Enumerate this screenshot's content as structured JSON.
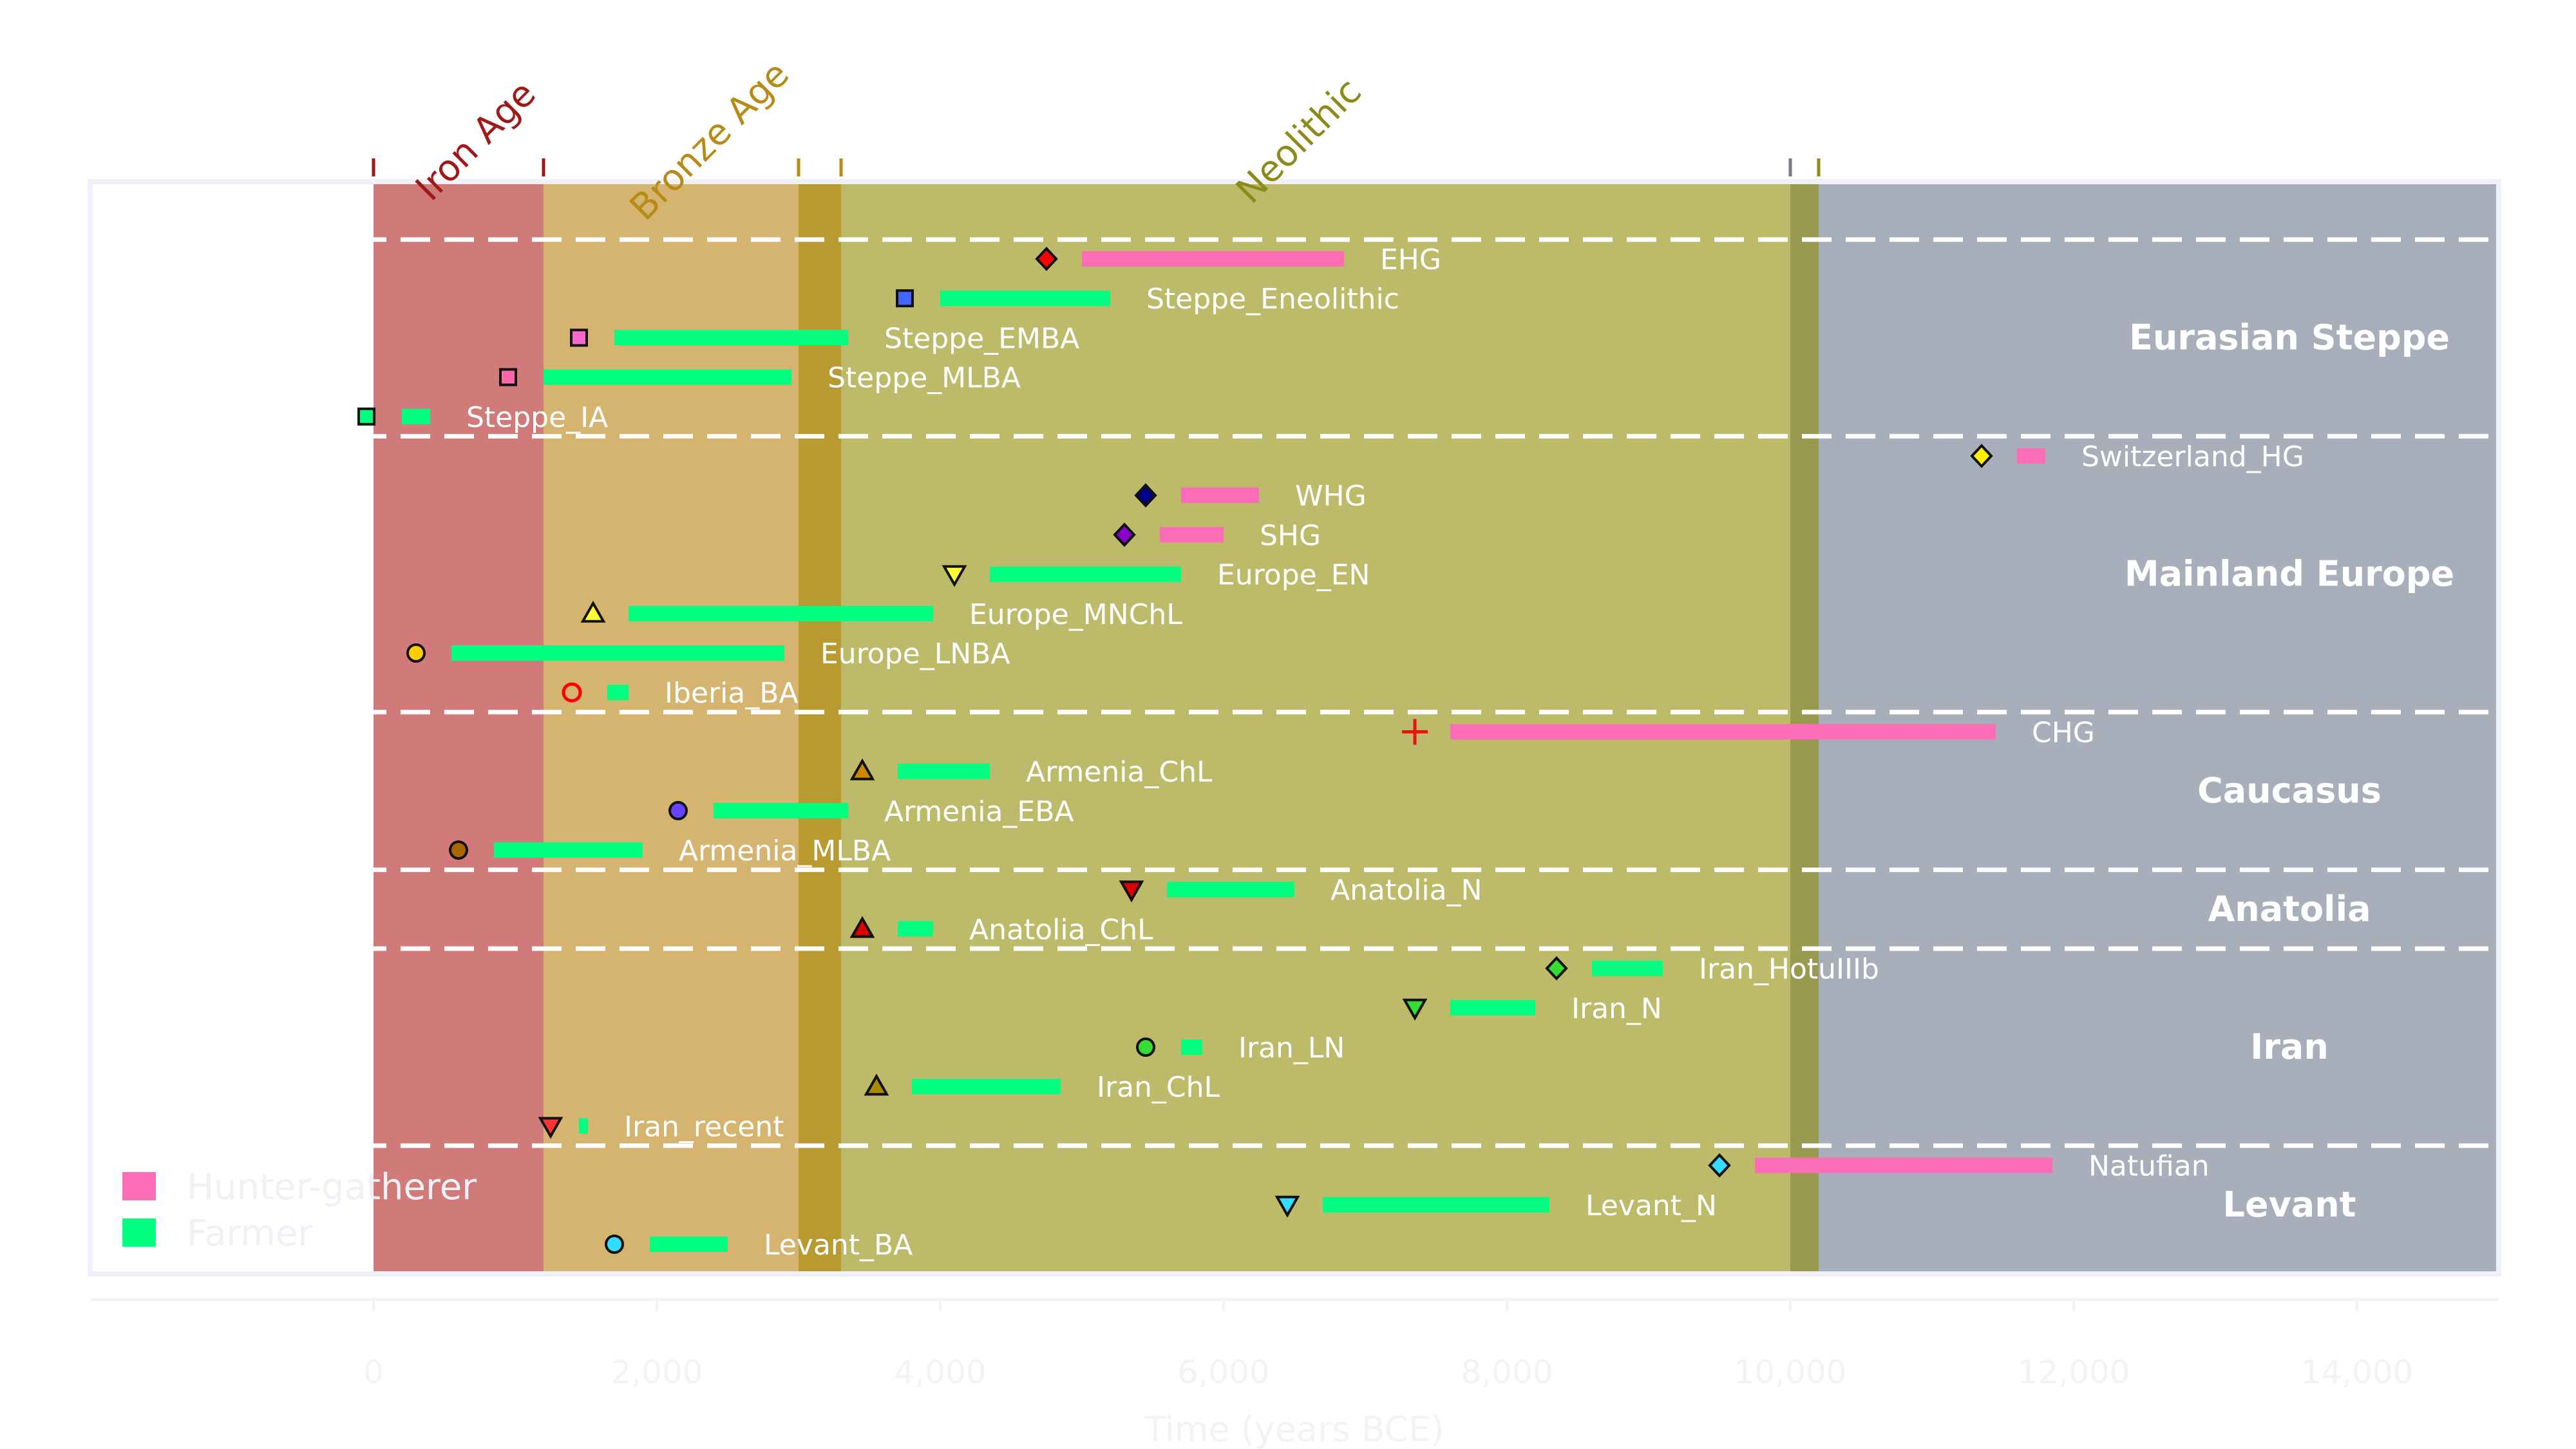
{
  "chart_data": {
    "type": "timeline",
    "xlabel": "Time (years BCE)",
    "xlim": [
      -2000,
      15000
    ],
    "x_ticks": [
      0,
      2000,
      4000,
      6000,
      8000,
      10000,
      12000,
      14000
    ],
    "x_tick_labels": [
      "0",
      "2,000",
      "4,000",
      "6,000",
      "8,000",
      "10,000",
      "12,000",
      "14,000"
    ],
    "eras": [
      {
        "name": "Iron Age",
        "start": 0,
        "end": 1200,
        "color": "#d07a7a",
        "label_color": "#a01919"
      },
      {
        "name": "Bronze Age",
        "start": 1200,
        "end": 3300,
        "color": "#d4b46e",
        "label_color": "#b88a16",
        "overlap_end": 3000,
        "overlap_color": "#b89a30"
      },
      {
        "name": "Neolithic",
        "start": 3000,
        "end": 10200,
        "color": "#bdbb69",
        "label_color": "#8d8b18",
        "overlap_start": 10000,
        "overlap_color": "#999a4f"
      },
      {
        "name": "",
        "start": 10000,
        "end": 15000,
        "color": "#a8aeba"
      }
    ],
    "legend": {
      "placement": "bottom-left",
      "items": [
        {
          "label": "Hunter-gatherer",
          "color": "#fb6db6"
        },
        {
          "label": "Farmer",
          "color": "#00ff80"
        }
      ]
    },
    "regions": [
      {
        "name": "Eurasian Steppe",
        "rows": [
          0,
          4
        ]
      },
      {
        "name": "Mainland Europe",
        "rows": [
          5,
          11
        ]
      },
      {
        "name": "Caucasus",
        "rows": [
          12,
          15
        ]
      },
      {
        "name": "Anatolia",
        "rows": [
          16,
          17
        ]
      },
      {
        "name": "Iran",
        "rows": [
          18,
          22
        ]
      },
      {
        "name": "Levant",
        "rows": [
          23,
          25
        ]
      }
    ],
    "populations": [
      {
        "label": "EHG",
        "type": "Hunter-gatherer",
        "start": 5000,
        "end": 6850,
        "marker": "diamond",
        "marker_color": "#ff0000",
        "marker_x": 4750
      },
      {
        "label": "Steppe_Eneolithic",
        "type": "Farmer",
        "start": 4000,
        "end": 5200,
        "marker": "square",
        "marker_color": "#4466ff",
        "marker_x": 3750
      },
      {
        "label": "Steppe_EMBA",
        "type": "Farmer",
        "start": 1700,
        "end": 3350,
        "marker": "square",
        "marker_color": "#ff66cc",
        "marker_x": 1450
      },
      {
        "label": "Steppe_MLBA",
        "type": "Farmer",
        "start": 1200,
        "end": 2950,
        "marker": "square",
        "marker_color": "#ff66aa",
        "marker_x": 950
      },
      {
        "label": "Steppe_IA",
        "type": "Farmer",
        "start": 200,
        "end": 400,
        "marker": "square",
        "marker_color": "#00ff80",
        "marker_x": -50
      },
      {
        "label": "Switzerland_HG",
        "type": "Hunter-gatherer",
        "start": 11600,
        "end": 11800,
        "marker": "diamond",
        "marker_color": "#ffee00",
        "marker_x": 11350
      },
      {
        "label": "WHG",
        "type": "Hunter-gatherer",
        "start": 5700,
        "end": 6250,
        "marker": "diamond",
        "marker_color": "#000088",
        "marker_x": 5450
      },
      {
        "label": "SHG",
        "type": "Hunter-gatherer",
        "start": 5550,
        "end": 6000,
        "marker": "diamond",
        "marker_color": "#8800cc",
        "marker_x": 5300
      },
      {
        "label": "Europe_EN",
        "type": "Farmer",
        "start": 4350,
        "end": 5700,
        "marker": "triangle-down",
        "marker_color": "#ffff33",
        "marker_x": 4100
      },
      {
        "label": "Europe_MNChL",
        "type": "Farmer",
        "start": 1800,
        "end": 3950,
        "marker": "triangle-up",
        "marker_color": "#ffff33",
        "marker_x": 1550
      },
      {
        "label": "Europe_LNBA",
        "type": "Farmer",
        "start": 550,
        "end": 2900,
        "marker": "circle",
        "marker_color": "#ffcc00",
        "marker_x": 300
      },
      {
        "label": "Iberia_BA",
        "type": "Farmer",
        "start": 1650,
        "end": 1800,
        "marker": "circle-open",
        "marker_color": "#ff0000",
        "marker_x": 1400
      },
      {
        "label": "CHG",
        "type": "Hunter-gatherer",
        "start": 7600,
        "end": 11450,
        "marker": "plus",
        "marker_color": "#ee1111",
        "marker_x": 7350
      },
      {
        "label": "Armenia_ChL",
        "type": "Farmer",
        "start": 3700,
        "end": 4350,
        "marker": "triangle-up",
        "marker_color": "#cc8800",
        "marker_x": 3450
      },
      {
        "label": "Armenia_EBA",
        "type": "Farmer",
        "start": 2400,
        "end": 3350,
        "marker": "circle",
        "marker_color": "#6644ff",
        "marker_x": 2150
      },
      {
        "label": "Armenia_MLBA",
        "type": "Farmer",
        "start": 850,
        "end": 1900,
        "marker": "circle",
        "marker_color": "#aa6600",
        "marker_x": 600
      },
      {
        "label": "Anatolia_N",
        "type": "Farmer",
        "start": 5600,
        "end": 6500,
        "marker": "triangle-down",
        "marker_color": "#dd0000",
        "marker_x": 5350
      },
      {
        "label": "Anatolia_ChL",
        "type": "Farmer",
        "start": 3700,
        "end": 3950,
        "marker": "triangle-up",
        "marker_color": "#dd0000",
        "marker_x": 3450
      },
      {
        "label": "Iran_HotuIIIb",
        "type": "Farmer",
        "start": 8600,
        "end": 9100,
        "marker": "diamond",
        "marker_color": "#33dd33",
        "marker_x": 8350
      },
      {
        "label": "Iran_N",
        "type": "Farmer",
        "start": 7600,
        "end": 8200,
        "marker": "triangle-down",
        "marker_color": "#33dd33",
        "marker_x": 7350
      },
      {
        "label": "Iran_LN",
        "type": "Farmer",
        "start": 5700,
        "end": 5850,
        "marker": "circle",
        "marker_color": "#33dd33",
        "marker_x": 5450
      },
      {
        "label": "Iran_ChL",
        "type": "Farmer",
        "start": 3800,
        "end": 4850,
        "marker": "triangle-up",
        "marker_color": "#aa8800",
        "marker_x": 3550
      },
      {
        "label": "Iran_recent",
        "type": "Farmer",
        "start": 1450,
        "end": 1500,
        "marker": "triangle-down",
        "marker_color": "#ff3333",
        "marker_x": 1250
      },
      {
        "label": "Natufian",
        "type": "Hunter-gatherer",
        "start": 9750,
        "end": 11850,
        "marker": "diamond",
        "marker_color": "#33ddff",
        "marker_x": 9500
      },
      {
        "label": "Levant_N",
        "type": "Farmer",
        "start": 6700,
        "end": 8300,
        "marker": "triangle-down",
        "marker_color": "#33ddff",
        "marker_x": 6450
      },
      {
        "label": "Levant_BA",
        "type": "Farmer",
        "start": 1950,
        "end": 2500,
        "marker": "circle",
        "marker_color": "#33ddff",
        "marker_x": 1700
      }
    ]
  }
}
